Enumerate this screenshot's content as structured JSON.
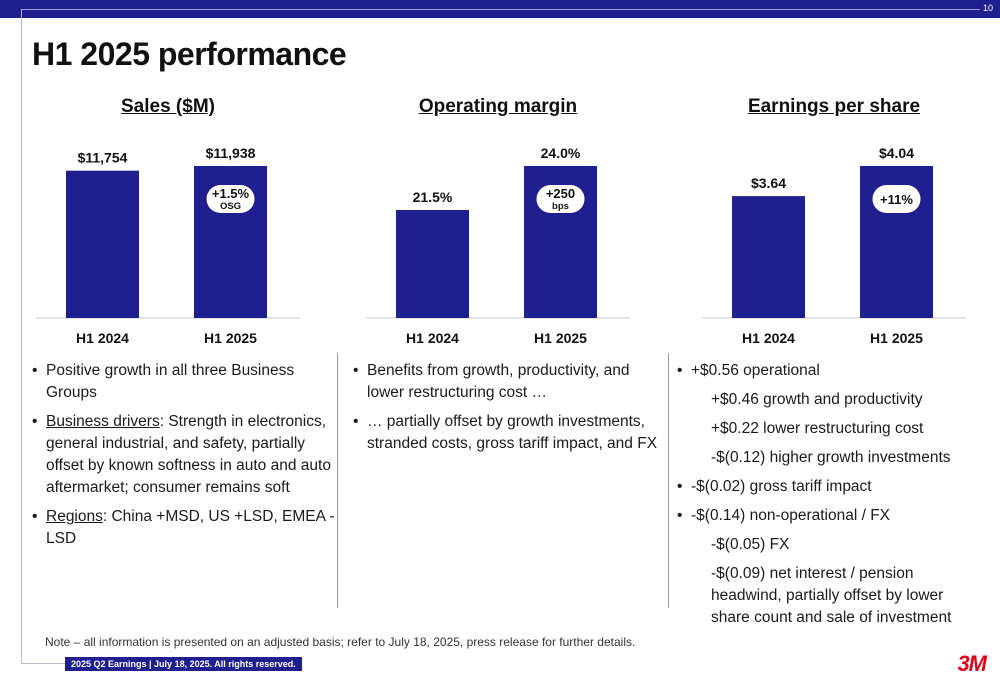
{
  "header": {
    "page_number": "10",
    "title": "H1 2025 performance"
  },
  "colors": {
    "bar": "#1f1f8f",
    "brand": "#e0001b",
    "header_bar": "#1f1f8f"
  },
  "chart_data": [
    {
      "type": "bar",
      "title": "Sales ($M)",
      "categories": [
        "H1 2024",
        "H1 2025"
      ],
      "values": [
        11754,
        11938
      ],
      "value_labels": [
        "$11,754",
        "$11,938"
      ],
      "annotation": {
        "line1": "+1.5%",
        "line2": "OSG"
      }
    },
    {
      "type": "bar",
      "title": "Operating margin",
      "categories": [
        "H1 2024",
        "H1 2025"
      ],
      "values": [
        21.5,
        24.0
      ],
      "value_labels": [
        "21.5%",
        "24.0%"
      ],
      "annotation": {
        "line1": "+250",
        "line2": "bps"
      }
    },
    {
      "type": "bar",
      "title": "Earnings per share",
      "categories": [
        "H1 2024",
        "H1 2025"
      ],
      "values": [
        3.64,
        4.04
      ],
      "value_labels": [
        "$3.64",
        "$4.04"
      ],
      "annotation": {
        "line1": "+11%",
        "line2": ""
      }
    }
  ],
  "sales_notes": {
    "b1": "Positive growth in all three Business Groups",
    "b2_label": "Business drivers",
    "b2_text": ": Strength in electronics, general industrial, and safety, partially offset by known softness in auto and auto aftermarket; consumer remains soft",
    "b3_label": "Regions",
    "b3_text": ": China +MSD, US +LSD, EMEA -LSD"
  },
  "margin_notes": {
    "b1": "Benefits from growth, productivity, and lower restructuring cost …",
    "b2": "… partially offset by growth investments, stranded costs, gross tariff impact, and FX"
  },
  "eps_notes": {
    "b1": "+$0.56 operational",
    "s1": "+$0.46 growth and productivity",
    "s2": "+$0.22 lower restructuring cost",
    "s3": "-$(0.12) higher growth investments",
    "b2": "-$(0.02) gross tariff impact",
    "b3": "-$(0.14) non-operational / FX",
    "s4": "-$(0.05) FX",
    "s5": "-$(0.09) net interest / pension headwind, partially offset by lower share count and sale of investment"
  },
  "footer": {
    "note": "Note – all information is presented on an adjusted basis; refer to July 18, 2025, press release for further details.",
    "badge": "2025 Q2 Earnings | July 18, 2025. All rights reserved.",
    "logo": "3M"
  }
}
